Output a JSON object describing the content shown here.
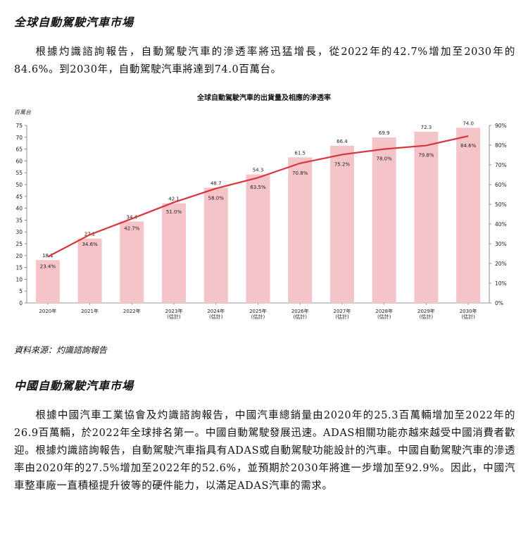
{
  "section1": {
    "heading": "全球自動駕駛汽車市場",
    "paragraph": "根據灼識諮詢報告，自動駕駛汽車的滲透率將迅猛增長，從2022年的42.7%增加至2030年的84.6%。到2030年，自動駕駛汽車將達到74.0百萬台。"
  },
  "chart_data": {
    "type": "bar",
    "title": "全球自動駕駛汽車的出貨量及相應的滲透率",
    "ylabel": "百萬台",
    "categories": [
      [
        "2020年"
      ],
      [
        "2021年"
      ],
      [
        "2022年"
      ],
      [
        "2023年",
        "(估計)"
      ],
      [
        "2024年",
        "(估計)"
      ],
      [
        "2025年",
        "(估計)"
      ],
      [
        "2026年",
        "(估計)"
      ],
      [
        "2027年",
        "(估計)"
      ],
      [
        "2028年",
        "(估計)"
      ],
      [
        "2029年",
        "(估計)"
      ],
      [
        "2030年",
        "(估計)"
      ]
    ],
    "series": [
      {
        "values": [
          18.1,
          27.2,
          34.4,
          42.1,
          48.7,
          54.3,
          61.5,
          66.4,
          69.9,
          72.3,
          74.0
        ],
        "labels": [
          "18.1",
          "27.2",
          "34.4",
          "42.1",
          "48.7",
          "54.3",
          "61.5",
          "66.4",
          "69.9",
          "72.3",
          "74.0"
        ],
        "color": "#f5c4c8",
        "axis": "left"
      },
      {
        "values": [
          23.4,
          34.6,
          42.7,
          51.0,
          58.0,
          63.5,
          70.8,
          75.2,
          78.0,
          79.8,
          84.6
        ],
        "labels": [
          "23.4%",
          "34.6%",
          "42.7%",
          "51.0%",
          "58.0%",
          "63.5%",
          "70.8%",
          "75.2%",
          "78.0%",
          "79.8%",
          "84.6%"
        ],
        "color": "#d9353b",
        "axis": "right"
      }
    ],
    "ylim": [
      0,
      75
    ],
    "yticks": [
      "0",
      "5",
      "10",
      "15",
      "20",
      "25",
      "30",
      "35",
      "40",
      "45",
      "50",
      "55",
      "60",
      "65",
      "70",
      "75"
    ],
    "y2lim": [
      0,
      90
    ],
    "y2ticks": [
      "0%",
      "10%",
      "20%",
      "30%",
      "40%",
      "50%",
      "60%",
      "70%",
      "80%",
      "90%"
    ],
    "grid": false
  },
  "source": "資料來源：灼識諮詢報告",
  "section2": {
    "heading": "中國自動駕駛汽車市場",
    "paragraph": "根據中國汽車工業協會及灼識諮詢報告，中國汽車總銷量由2020年的25.3百萬輛增加至2022年的26.9百萬輛，於2022年全球排名第一。中國自動駕駛發展迅速。ADAS相關功能亦越來越受中國消費者歡迎。根據灼識諮詢報告，自動駕駛汽車指具有ADAS或自動駕駛功能設計的汽車。中國自動駕駛汽車的滲透率由2020年的27.5%增加至2022年的52.6%，並預期於2030年將進一步增加至92.9%。因此，中國汽車整車廠一直積極提升彼等的硬件能力，以滿足ADAS汽車的需求。"
  }
}
